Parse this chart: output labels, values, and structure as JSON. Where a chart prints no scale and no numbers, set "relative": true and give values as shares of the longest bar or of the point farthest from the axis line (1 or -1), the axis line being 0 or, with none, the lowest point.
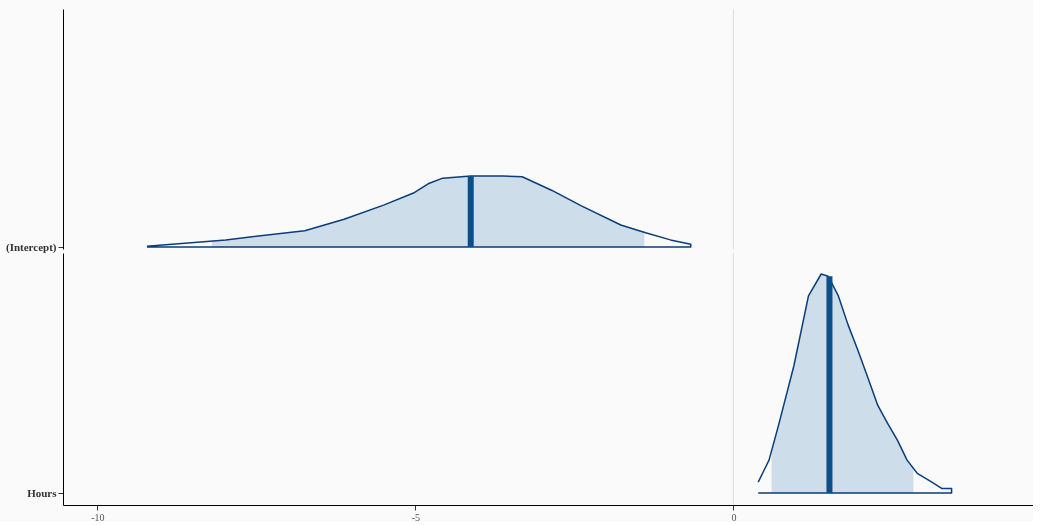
{
  "chart_data": [
    {
      "type": "area",
      "relative": true,
      "ylabel": "(Intercept)",
      "xlim": [
        -10.54,
        4.71
      ],
      "tick_labels": false,
      "grid": false,
      "ref_lines": [
        {
          "axis": "x",
          "value": 0,
          "color": "#dddddd"
        }
      ],
      "series": [
        {
          "color": "#cddde9",
          "x": [
            -8.2,
            -7.98,
            -6.74,
            -6.12,
            -5.5,
            -5.03,
            -4.8,
            -4.57,
            -4.13,
            -3.63,
            -3.32,
            -2.86,
            -2.39,
            -1.77,
            -1.4
          ],
          "values": [
            0.09,
            0.1,
            0.23,
            0.39,
            0.59,
            0.76,
            0.89,
            0.97,
            1.0,
            1.0,
            0.99,
            0.8,
            0.58,
            0.31,
            0.2
          ]
        },
        {
          "type": "line",
          "color": "#0b3d78",
          "x": [
            -9.22,
            -7.98,
            -6.74,
            -6.12,
            -5.5,
            -5.03,
            -4.8,
            -4.57,
            -4.13,
            -3.63,
            -3.32,
            -2.86,
            -2.39,
            -1.77,
            -1.38,
            -0.99,
            -0.67,
            -0.67,
            -9.22
          ],
          "values": [
            0.01,
            0.1,
            0.23,
            0.39,
            0.59,
            0.76,
            0.89,
            0.97,
            1.0,
            1.0,
            0.99,
            0.8,
            0.58,
            0.31,
            0.2,
            0.1,
            0.04,
            0,
            0
          ]
        },
        {
          "type": "line",
          "color": "#0b4f8a",
          "x": [
            -4.13,
            -4.13
          ],
          "values": [
            0,
            1.0
          ]
        }
      ]
    },
    {
      "type": "area",
      "relative": true,
      "ylabel": "Hours",
      "xlim": [
        -10.54,
        4.71
      ],
      "xticks": [
        -10,
        -5,
        0
      ],
      "tick_labels": "x",
      "grid": false,
      "ref_lines": [
        {
          "axis": "x",
          "value": 0,
          "color": "#dddddd"
        }
      ],
      "series": [
        {
          "color": "#cddde9",
          "x": [
            0.6,
            0.71,
            0.95,
            1.18,
            1.38,
            1.49,
            1.65,
            1.8,
            1.96,
            2.11,
            2.27,
            2.42,
            2.58,
            2.73,
            2.83
          ],
          "values": [
            0.19,
            0.31,
            0.58,
            0.9,
            1.0,
            0.99,
            0.9,
            0.77,
            0.65,
            0.53,
            0.4,
            0.32,
            0.24,
            0.15,
            0.11
          ]
        },
        {
          "type": "line",
          "color": "#0b3d78",
          "x": [
            0.39,
            0.56,
            0.71,
            0.95,
            1.18,
            1.38,
            1.49,
            1.65,
            1.8,
            1.96,
            2.11,
            2.27,
            2.42,
            2.58,
            2.73,
            2.89,
            3.12,
            3.28,
            3.43,
            3.43,
            0.39
          ],
          "values": [
            0.05,
            0.15,
            0.31,
            0.58,
            0.9,
            1.0,
            0.99,
            0.9,
            0.77,
            0.65,
            0.53,
            0.4,
            0.32,
            0.24,
            0.15,
            0.09,
            0.05,
            0.02,
            0.02,
            0,
            0
          ]
        },
        {
          "type": "line",
          "color": "#0b4f8a",
          "x": [
            1.51,
            1.51
          ],
          "values": [
            0,
            0.99
          ]
        }
      ]
    }
  ]
}
